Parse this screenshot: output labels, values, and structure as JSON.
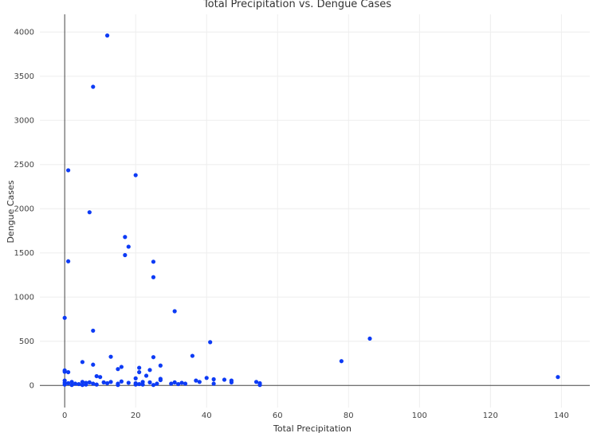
{
  "chart_data": {
    "type": "scatter",
    "title": "Total Precipitation vs. Dengue Cases",
    "xlabel": "Total Precipitation",
    "ylabel": "Dengue Cases",
    "xlim": [
      -7,
      148
    ],
    "ylim": [
      -250,
      4200
    ],
    "xticks": [
      0,
      20,
      40,
      60,
      80,
      100,
      120,
      140
    ],
    "yticks": [
      0,
      500,
      1000,
      1500,
      2000,
      2500,
      3000,
      3500,
      4000
    ],
    "grid": true,
    "marker_color": "#0d3bf5",
    "series": [
      {
        "points": [
          [
            12,
            3960
          ],
          [
            8,
            3380
          ],
          [
            1,
            2435
          ],
          [
            20,
            2380
          ],
          [
            7,
            1960
          ],
          [
            17,
            1680
          ],
          [
            18,
            1570
          ],
          [
            17,
            1475
          ],
          [
            25,
            1400
          ],
          [
            1,
            1405
          ],
          [
            25,
            1225
          ],
          [
            31,
            840
          ],
          [
            0,
            765
          ],
          [
            8,
            620
          ],
          [
            41,
            490
          ],
          [
            86,
            530
          ],
          [
            36,
            335
          ],
          [
            13,
            325
          ],
          [
            25,
            320
          ],
          [
            78,
            275
          ],
          [
            5,
            265
          ],
          [
            8,
            235
          ],
          [
            27,
            225
          ],
          [
            16,
            210
          ],
          [
            21,
            200
          ],
          [
            15,
            185
          ],
          [
            24,
            175
          ],
          [
            0,
            170
          ],
          [
            0,
            155
          ],
          [
            1,
            150
          ],
          [
            21,
            150
          ],
          [
            23,
            110
          ],
          [
            9,
            105
          ],
          [
            10,
            95
          ],
          [
            139,
            95
          ],
          [
            40,
            85
          ],
          [
            20,
            80
          ],
          [
            27,
            75
          ],
          [
            42,
            70
          ],
          [
            45,
            65
          ],
          [
            27,
            60
          ],
          [
            37,
            55
          ],
          [
            47,
            55
          ],
          [
            0,
            55
          ],
          [
            2,
            40
          ],
          [
            5,
            40
          ],
          [
            7,
            35
          ],
          [
            11,
            35
          ],
          [
            13,
            40
          ],
          [
            16,
            45
          ],
          [
            22,
            40
          ],
          [
            24,
            35
          ],
          [
            31,
            35
          ],
          [
            33,
            30
          ],
          [
            38,
            40
          ],
          [
            47,
            35
          ],
          [
            54,
            40
          ],
          [
            55,
            25
          ],
          [
            0,
            30
          ],
          [
            1,
            25
          ],
          [
            3,
            20
          ],
          [
            4,
            15
          ],
          [
            6,
            10
          ],
          [
            6,
            30
          ],
          [
            8,
            20
          ],
          [
            12,
            25
          ],
          [
            15,
            20
          ],
          [
            18,
            30
          ],
          [
            20,
            25
          ],
          [
            21,
            15
          ],
          [
            26,
            20
          ],
          [
            30,
            20
          ],
          [
            32,
            15
          ],
          [
            34,
            20
          ],
          [
            42,
            20
          ],
          [
            0,
            10
          ],
          [
            2,
            5
          ],
          [
            5,
            5
          ],
          [
            9,
            10
          ],
          [
            15,
            5
          ],
          [
            20,
            10
          ],
          [
            22,
            10
          ],
          [
            25,
            5
          ],
          [
            55,
            5
          ]
        ]
      }
    ]
  }
}
